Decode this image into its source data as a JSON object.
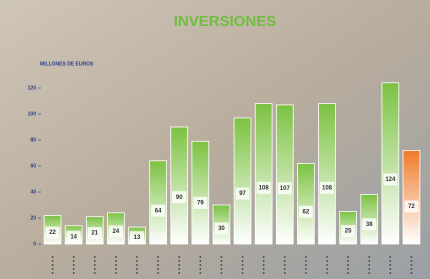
{
  "chart_data": {
    "type": "bar",
    "title": "INVERSIONES",
    "subtitle": "MILLONES DE EUROS",
    "categories": [
      null,
      null,
      null,
      null,
      null,
      null,
      null,
      null,
      null,
      null,
      null,
      null,
      null,
      null,
      null,
      null,
      null,
      null
    ],
    "values": [
      22,
      14,
      21,
      24,
      13,
      64,
      90,
      79,
      30,
      97,
      108,
      107,
      62,
      108,
      25,
      38,
      124,
      72
    ],
    "colors": [
      "#7cc242",
      "#7cc242",
      "#7cc242",
      "#7cc242",
      "#7cc242",
      "#7cc242",
      "#7cc242",
      "#7cc242",
      "#7cc242",
      "#7cc242",
      "#7cc242",
      "#7cc242",
      "#7cc242",
      "#7cc242",
      "#7cc242",
      "#7cc242",
      "#7cc242",
      "#f07a2a"
    ],
    "ylim": [
      0,
      120
    ],
    "yticks": [
      0,
      20,
      40,
      60,
      80,
      100,
      120
    ],
    "grid": false
  }
}
